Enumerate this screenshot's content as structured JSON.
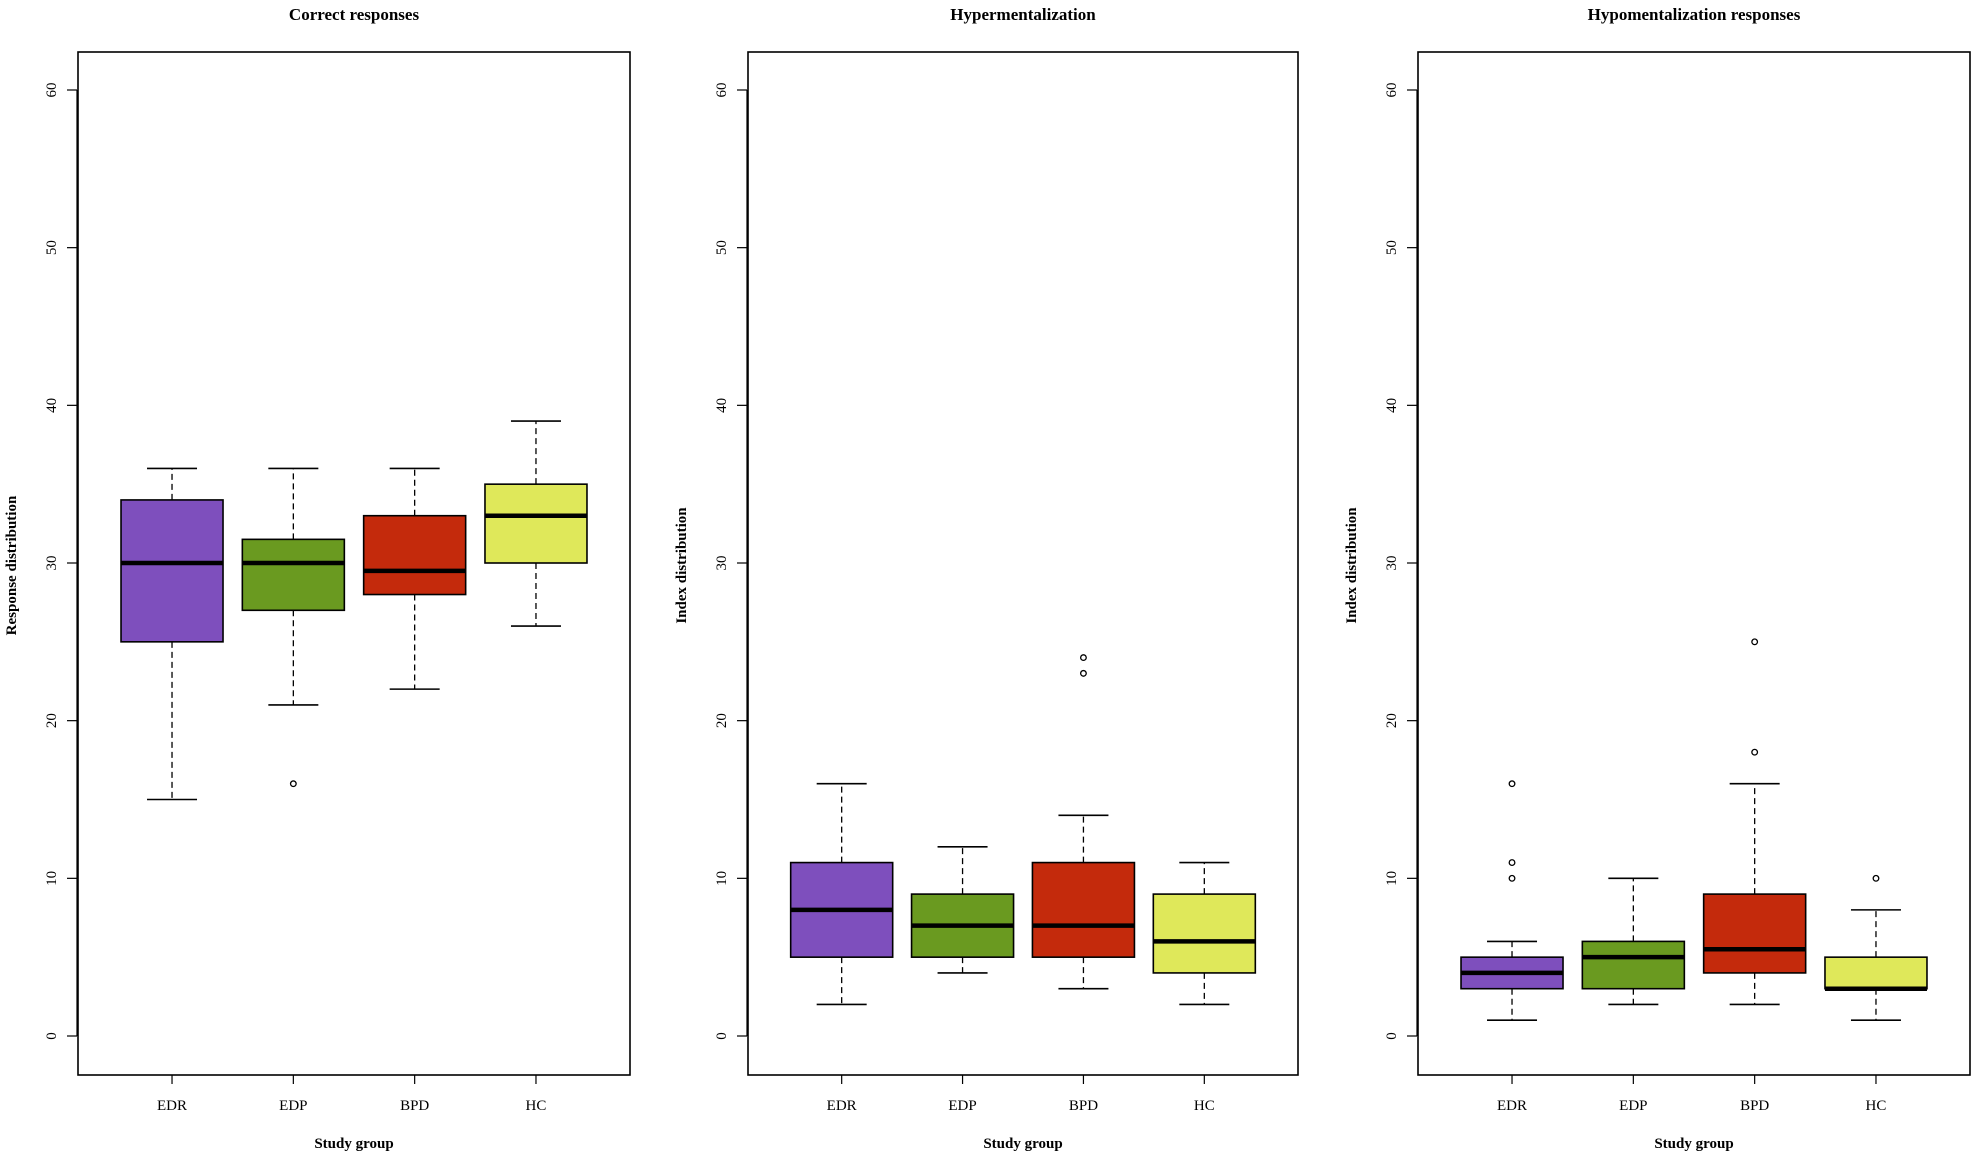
{
  "chart_data": [
    {
      "type": "boxplot",
      "title": "Correct responses",
      "xlabel": "Study group",
      "ylabel": "Response distribution",
      "ylim": [
        0,
        60
      ],
      "yticks": [
        0,
        10,
        20,
        30,
        40,
        50,
        60
      ],
      "categories": [
        "EDR",
        "EDP",
        "BPD",
        "HC"
      ],
      "boxes": [
        {
          "group": "EDR",
          "whisker_low": 15,
          "q1": 25,
          "median": 30,
          "q3": 34,
          "whisker_high": 36,
          "outliers": []
        },
        {
          "group": "EDP",
          "whisker_low": 21,
          "q1": 27,
          "median": 30,
          "q3": 31.5,
          "whisker_high": 36,
          "outliers": [
            16
          ]
        },
        {
          "group": "BPD",
          "whisker_low": 22,
          "q1": 28,
          "median": 29.5,
          "q3": 33,
          "whisker_high": 36,
          "outliers": []
        },
        {
          "group": "HC",
          "whisker_low": 26,
          "q1": 30,
          "median": 33,
          "q3": 35,
          "whisker_high": 39,
          "outliers": []
        }
      ]
    },
    {
      "type": "boxplot",
      "title": "Hypermentalization",
      "xlabel": "Study group",
      "ylabel": "Index distribution",
      "ylim": [
        0,
        60
      ],
      "yticks": [
        0,
        10,
        20,
        30,
        40,
        50,
        60
      ],
      "categories": [
        "EDR",
        "EDP",
        "BPD",
        "HC"
      ],
      "boxes": [
        {
          "group": "EDR",
          "whisker_low": 2,
          "q1": 5,
          "median": 8,
          "q3": 11,
          "whisker_high": 16,
          "outliers": []
        },
        {
          "group": "EDP",
          "whisker_low": 4,
          "q1": 5,
          "median": 7,
          "q3": 9,
          "whisker_high": 12,
          "outliers": []
        },
        {
          "group": "BPD",
          "whisker_low": 3,
          "q1": 5,
          "median": 7,
          "q3": 11,
          "whisker_high": 14,
          "outliers": [
            23,
            24
          ]
        },
        {
          "group": "HC",
          "whisker_low": 2,
          "q1": 4,
          "median": 6,
          "q3": 9,
          "whisker_high": 11,
          "outliers": []
        }
      ]
    },
    {
      "type": "boxplot",
      "title": "Hypomentalization responses",
      "xlabel": "Study group",
      "ylabel": "Index distribution",
      "ylim": [
        0,
        60
      ],
      "yticks": [
        0,
        10,
        20,
        30,
        40,
        50,
        60
      ],
      "categories": [
        "EDR",
        "EDP",
        "BPD",
        "HC"
      ],
      "boxes": [
        {
          "group": "EDR",
          "whisker_low": 1,
          "q1": 3,
          "median": 4,
          "q3": 5,
          "whisker_high": 6,
          "outliers": [
            10,
            11,
            16
          ]
        },
        {
          "group": "EDP",
          "whisker_low": 2,
          "q1": 3,
          "median": 5,
          "q3": 6,
          "whisker_high": 10,
          "outliers": []
        },
        {
          "group": "BPD",
          "whisker_low": 2,
          "q1": 4,
          "median": 5.5,
          "q3": 9,
          "whisker_high": 16,
          "outliers": [
            18,
            25
          ]
        },
        {
          "group": "HC",
          "whisker_low": 1,
          "q1": 3,
          "median": 3,
          "q3": 5,
          "whisker_high": 8,
          "outliers": [
            10
          ]
        }
      ]
    }
  ],
  "colors": {
    "EDR": "#7e4fbd",
    "EDP": "#6a9a20",
    "BPD": "#c42a0c",
    "HC": "#dfe85a"
  }
}
